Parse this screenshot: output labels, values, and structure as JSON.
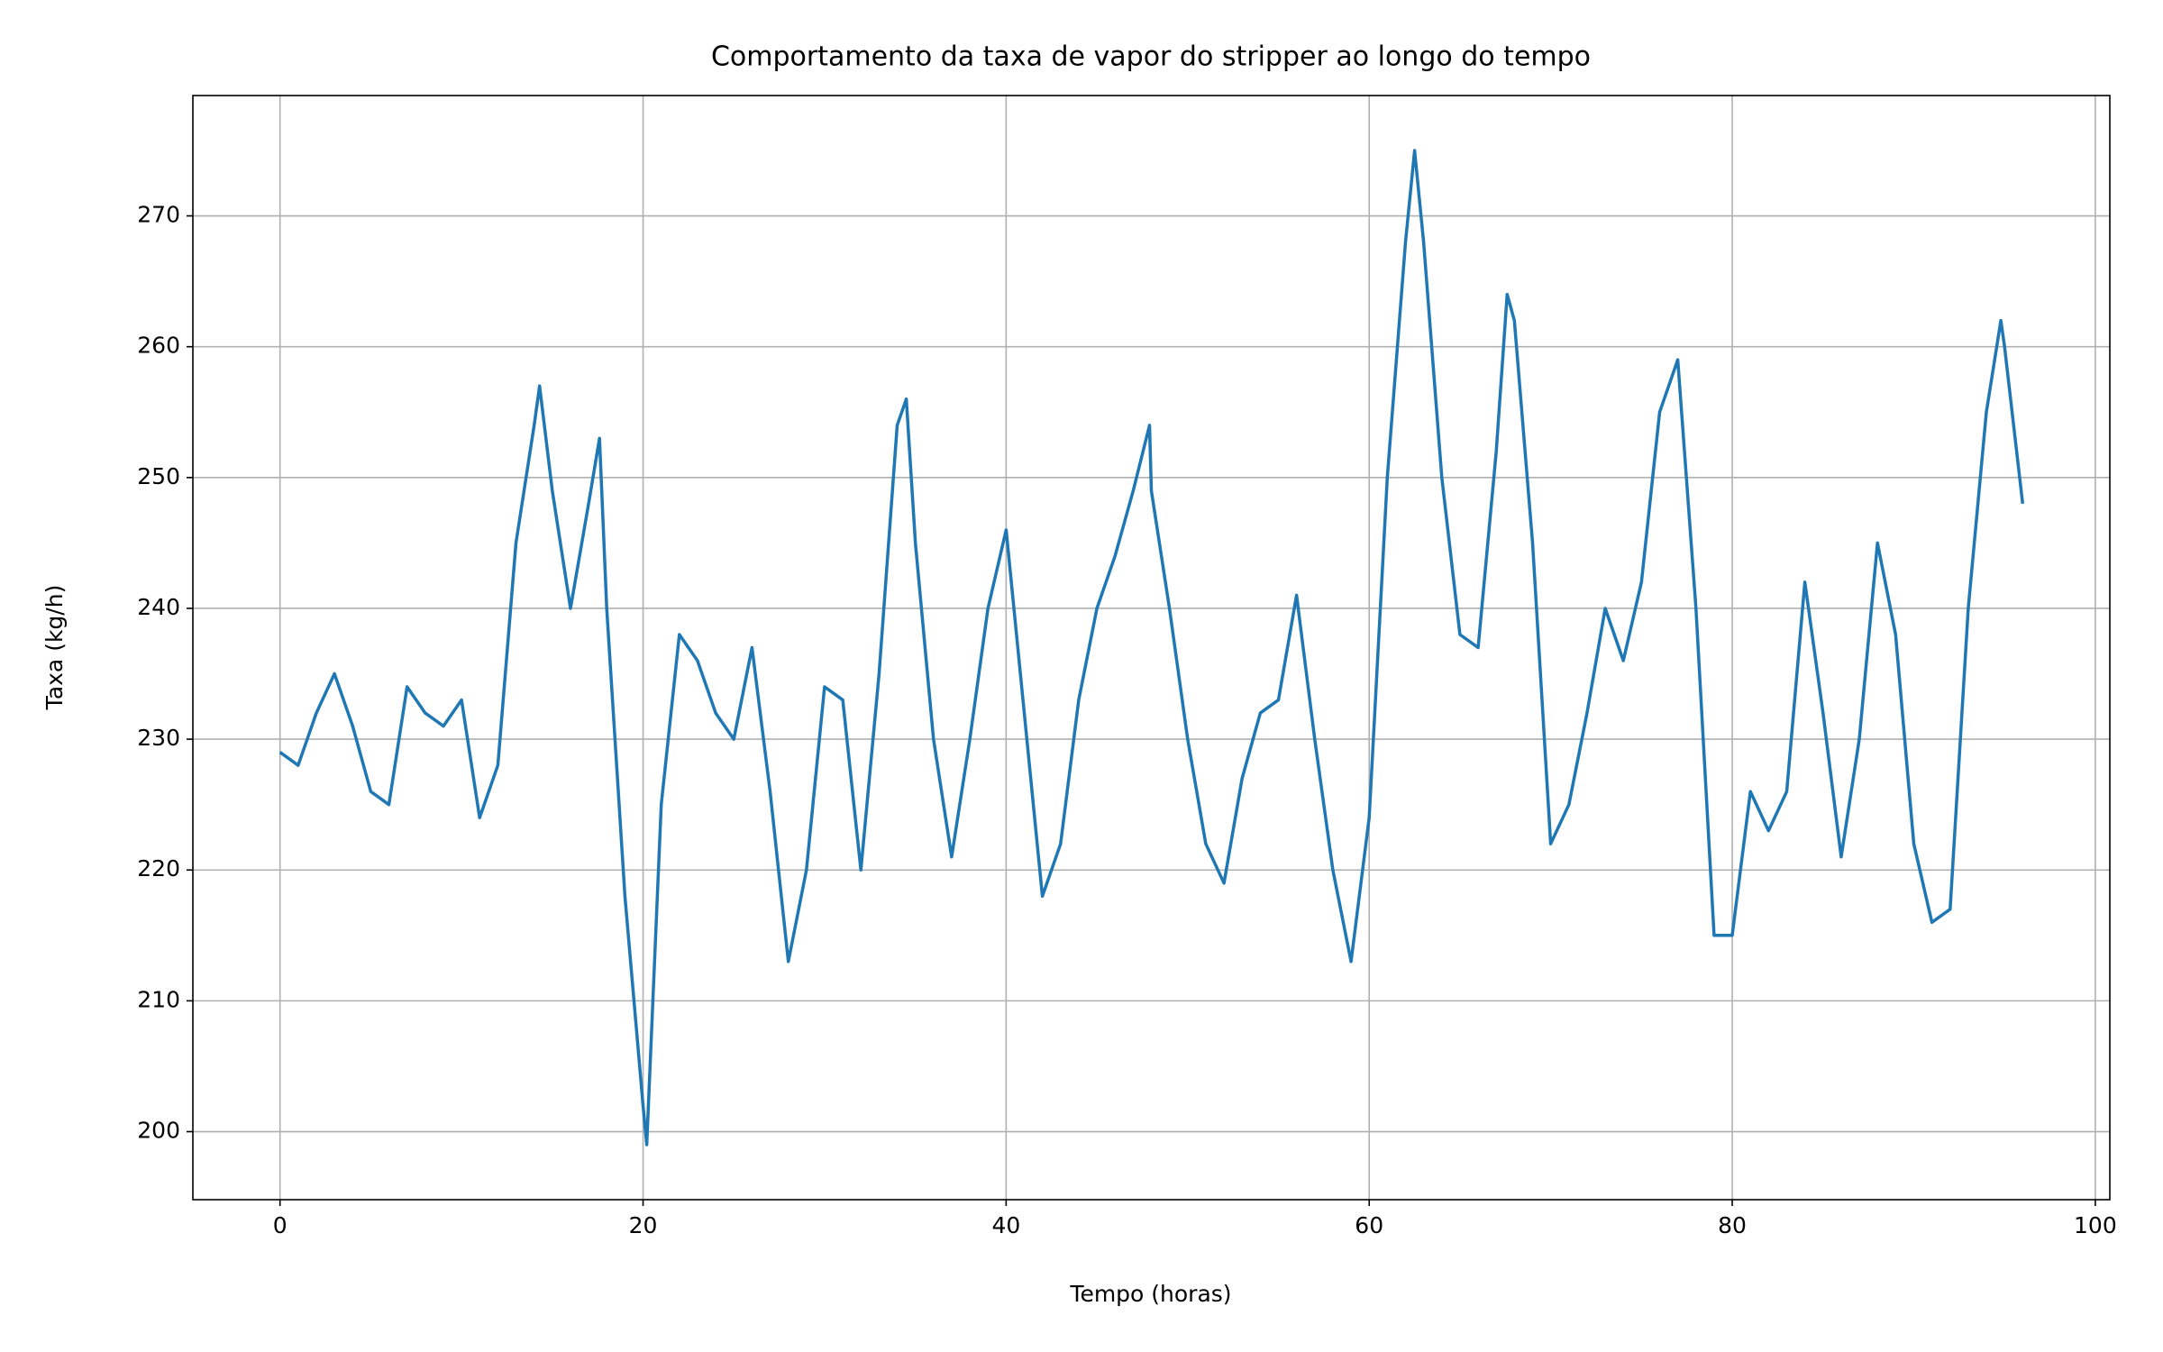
{
  "chart_data": {
    "type": "line",
    "title": "Comportamento da taxa de vapor do stripper ao longo do tempo",
    "xlabel": "Tempo (horas)",
    "ylabel": "Taxa (kg/h)",
    "x": [
      0,
      1,
      2,
      3,
      4,
      5,
      6,
      7,
      8,
      9,
      10,
      11,
      12,
      13,
      14,
      14.3,
      15,
      16,
      17,
      17.6,
      18,
      19,
      20,
      20.2,
      21,
      22,
      23,
      24,
      25,
      26,
      27,
      28,
      29,
      30,
      31,
      32,
      33,
      34,
      34.5,
      35,
      36,
      37,
      38,
      39,
      40,
      41,
      42,
      43,
      44,
      45,
      46,
      47,
      47.9,
      48,
      49,
      50,
      51,
      52,
      53,
      54,
      55,
      56,
      57,
      58,
      59,
      60,
      61,
      62,
      62.5,
      63,
      64,
      65,
      66,
      67,
      67.6,
      68,
      69,
      70,
      71,
      72,
      73,
      74,
      75,
      76,
      77,
      78,
      79,
      80,
      81,
      82,
      83,
      84,
      85,
      86,
      87,
      88,
      89,
      90,
      91,
      92,
      93,
      94,
      94.8,
      95,
      96
    ],
    "series": [
      {
        "name": "Taxa",
        "color": "#1f77b4",
        "values": [
          229,
          228,
          232,
          235,
          231,
          226,
          225,
          234,
          232,
          231,
          233,
          224,
          228,
          245,
          254,
          257,
          249,
          240,
          248,
          253,
          240,
          218,
          202,
          199,
          225,
          238,
          236,
          232,
          230,
          237,
          226,
          213,
          220,
          234,
          233,
          220,
          235,
          254,
          256,
          245,
          230,
          221,
          230,
          240,
          246,
          232,
          218,
          222,
          233,
          240,
          244,
          249,
          254,
          249,
          240,
          230,
          222,
          219,
          227,
          232,
          233,
          241,
          230,
          220,
          213,
          224,
          250,
          268,
          275,
          268,
          250,
          238,
          237,
          252,
          264,
          262,
          245,
          222,
          225,
          232,
          240,
          236,
          242,
          255,
          259,
          240,
          215,
          215,
          226,
          223,
          226,
          242,
          232,
          221,
          230,
          245,
          238,
          222,
          216,
          217,
          240,
          255,
          262,
          260,
          248
        ]
      }
    ],
    "xlim": [
      -4.8,
      100.8
    ],
    "ylim": [
      194.8,
      279.2
    ],
    "xticks": [
      0,
      20,
      40,
      60,
      80,
      100
    ],
    "yticks": [
      200,
      210,
      220,
      230,
      240,
      250,
      260,
      270
    ],
    "grid": true
  }
}
